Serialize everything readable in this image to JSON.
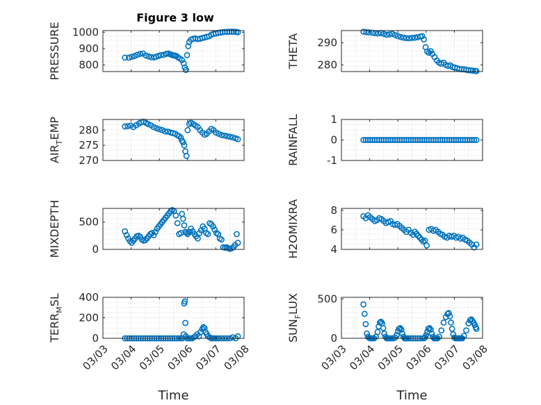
{
  "figure_title": "Figure 3 low",
  "x_axis_label": "Time",
  "x_tick_labels": [
    "03/03",
    "03/04",
    "03/05",
    "03/06",
    "03/07",
    "03/08"
  ],
  "marker_color": "#0072BD",
  "axis_color": "#262626",
  "grid_color": "#cccccc",
  "chart_data": [
    {
      "type": "scatter",
      "label_main": "PRESSURE",
      "label_sub": "",
      "label_tail": "",
      "ylim": [
        760,
        1010
      ],
      "yticks": [
        800,
        900,
        1000
      ],
      "ytick_labels": [
        "800",
        "900",
        "1000"
      ],
      "grid": true,
      "x": [
        3.78,
        3.92,
        4.02,
        4.12,
        4.22,
        4.32,
        4.42,
        4.52,
        4.62,
        4.72,
        4.82,
        4.88,
        4.96,
        5.05,
        5.15,
        5.25,
        5.32,
        5.38,
        5.44,
        5.5,
        5.55,
        5.6,
        5.65,
        5.72,
        5.8,
        5.86,
        5.9,
        5.94,
        5.98,
        6.02,
        6.06,
        6.12,
        6.2,
        6.28,
        6.36,
        6.44,
        6.52,
        6.6,
        6.68,
        6.76,
        6.84,
        6.92,
        7.0,
        7.08,
        7.16,
        7.24,
        7.32,
        7.4,
        7.48,
        7.56,
        7.64,
        7.72,
        7.78
      ],
      "y": [
        845,
        845,
        850,
        855,
        862,
        868,
        870,
        858,
        852,
        848,
        846,
        850,
        855,
        860,
        862,
        868,
        870,
        866,
        862,
        858,
        858,
        855,
        848,
        840,
        830,
        810,
        785,
        770,
        860,
        915,
        940,
        955,
        960,
        962,
        958,
        960,
        965,
        968,
        972,
        975,
        985,
        990,
        992,
        996,
        998,
        1000,
        1002,
        1002,
        1003,
        1003,
        1003,
        1002,
        1000
      ]
    },
    {
      "type": "scatter",
      "label_main": "THETA",
      "label_sub": "",
      "label_tail": "",
      "ylim": [
        277,
        295.5
      ],
      "yticks": [
        280,
        290
      ],
      "ytick_labels": [
        "280",
        "290"
      ],
      "grid": true,
      "x": [
        3.78,
        3.88,
        3.98,
        4.1,
        4.2,
        4.3,
        4.4,
        4.5,
        4.6,
        4.7,
        4.8,
        4.9,
        5.0,
        5.1,
        5.2,
        5.3,
        5.4,
        5.5,
        5.6,
        5.7,
        5.8,
        5.86,
        5.92,
        5.98,
        6.04,
        6.1,
        6.16,
        6.22,
        6.3,
        6.38,
        6.46,
        6.54,
        6.62,
        6.7,
        6.78,
        6.86,
        6.94,
        7.02,
        7.1,
        7.18,
        7.26,
        7.34,
        7.42,
        7.5,
        7.58,
        7.66,
        7.74,
        7.78
      ],
      "y": [
        295,
        294.8,
        294.7,
        294.5,
        294.3,
        294.2,
        294.4,
        294.0,
        293.6,
        293.8,
        294.0,
        293.5,
        293.0,
        292.6,
        292.3,
        292.1,
        292.0,
        292.2,
        292.3,
        292.5,
        292.8,
        293.0,
        291.5,
        288.0,
        286.0,
        285.5,
        286.2,
        285.0,
        283.5,
        282.0,
        281.0,
        280.5,
        281.0,
        280.0,
        279.5,
        279.8,
        279.0,
        278.8,
        278.5,
        278.2,
        278.0,
        278.0,
        277.8,
        277.6,
        277.5,
        277.4,
        277.3,
        277.2
      ]
    },
    {
      "type": "scatter",
      "label_main": "AIR",
      "label_sub": "T",
      "label_tail": "EMP",
      "ylim": [
        270,
        283.5
      ],
      "yticks": [
        270,
        275,
        280
      ],
      "ytick_labels": [
        "270",
        "275",
        "280"
      ],
      "grid": true,
      "x": [
        3.78,
        3.88,
        3.98,
        4.08,
        4.18,
        4.28,
        4.36,
        4.44,
        4.52,
        4.6,
        4.7,
        4.8,
        4.9,
        5.0,
        5.1,
        5.2,
        5.3,
        5.4,
        5.48,
        5.56,
        5.64,
        5.7,
        5.76,
        5.8,
        5.84,
        5.88,
        5.92,
        5.96,
        6.0,
        6.06,
        6.12,
        6.2,
        6.28,
        6.36,
        6.44,
        6.52,
        6.6,
        6.68,
        6.76,
        6.84,
        6.92,
        7.0,
        7.1,
        7.2,
        7.3,
        7.4,
        7.5,
        7.6,
        7.7,
        7.78
      ],
      "y": [
        281.2,
        281.3,
        281.5,
        281.0,
        281.6,
        282.2,
        282.6,
        282.8,
        282.4,
        282.0,
        281.6,
        281.0,
        280.6,
        280.3,
        280.0,
        279.6,
        279.5,
        279.2,
        279.0,
        278.8,
        278.3,
        278.0,
        277.5,
        276.5,
        276.0,
        275.0,
        273.0,
        271.5,
        280.0,
        282.0,
        282.4,
        282.0,
        281.5,
        281.0,
        280.0,
        279.2,
        278.5,
        278.8,
        279.6,
        280.4,
        280.0,
        279.2,
        278.8,
        278.4,
        278.2,
        278.0,
        277.8,
        277.6,
        277.3,
        277.0
      ]
    },
    {
      "type": "scatter",
      "label_main": "RAINFALL",
      "label_sub": "",
      "label_tail": "",
      "ylim": [
        -1,
        1
      ],
      "yticks": [
        -1,
        0,
        1
      ],
      "ytick_labels": [
        "-1",
        "0",
        "1"
      ],
      "grid": true,
      "x": [
        3.78,
        3.86,
        3.94,
        4.02,
        4.1,
        4.18,
        4.26,
        4.34,
        4.42,
        4.5,
        4.58,
        4.66,
        4.74,
        4.82,
        4.9,
        4.98,
        5.06,
        5.14,
        5.22,
        5.3,
        5.38,
        5.46,
        5.54,
        5.62,
        5.7,
        5.78,
        5.86,
        5.94,
        6.02,
        6.1,
        6.18,
        6.26,
        6.34,
        6.42,
        6.5,
        6.58,
        6.66,
        6.74,
        6.82,
        6.9,
        6.98,
        7.06,
        7.14,
        7.22,
        7.3,
        7.38,
        7.46,
        7.54,
        7.62,
        7.7,
        7.78
      ],
      "y": [
        0,
        0,
        0,
        0,
        0,
        0,
        0,
        0,
        0,
        0,
        0,
        0,
        0,
        0,
        0,
        0,
        0,
        0,
        0,
        0,
        0,
        0,
        0,
        0,
        0,
        0,
        0,
        0,
        0,
        0,
        0,
        0,
        0,
        0,
        0,
        0,
        0,
        0,
        0,
        0,
        0,
        0,
        0,
        0,
        0,
        0,
        0,
        0,
        0,
        0,
        0
      ]
    },
    {
      "type": "scatter",
      "label_main": "MIXDEPTH",
      "label_sub": "",
      "label_tail": "",
      "ylim": [
        0,
        750
      ],
      "yticks": [
        0,
        500
      ],
      "ytick_labels": [
        "0",
        "500"
      ],
      "grid": true,
      "x": [
        3.78,
        3.84,
        3.9,
        3.96,
        4.02,
        4.08,
        4.14,
        4.2,
        4.26,
        4.32,
        4.38,
        4.44,
        4.5,
        4.56,
        4.62,
        4.68,
        4.74,
        4.8,
        4.86,
        4.92,
        4.98,
        5.04,
        5.1,
        5.16,
        5.22,
        5.28,
        5.34,
        5.4,
        5.46,
        5.52,
        5.58,
        5.64,
        5.7,
        5.76,
        5.8,
        5.84,
        5.88,
        5.92,
        5.96,
        6.0,
        6.06,
        6.12,
        6.18,
        6.24,
        6.3,
        6.36,
        6.42,
        6.48,
        6.54,
        6.6,
        6.66,
        6.72,
        6.78,
        6.84,
        6.9,
        6.96,
        7.02,
        7.08,
        7.14,
        7.2,
        7.26,
        7.32,
        7.38,
        7.44,
        7.5,
        7.56,
        7.62,
        7.68,
        7.74,
        7.78
      ],
      "y": [
        330,
        260,
        200,
        150,
        120,
        160,
        200,
        240,
        250,
        230,
        180,
        160,
        170,
        200,
        240,
        280,
        300,
        260,
        320,
        380,
        420,
        460,
        500,
        540,
        580,
        620,
        660,
        700,
        720,
        700,
        620,
        480,
        280,
        300,
        650,
        560,
        440,
        320,
        300,
        280,
        320,
        380,
        330,
        280,
        240,
        200,
        300,
        350,
        420,
        380,
        300,
        280,
        480,
        460,
        420,
        360,
        300,
        280,
        200,
        180,
        40,
        30,
        40,
        20,
        10,
        20,
        40,
        80,
        280,
        120
      ]
    },
    {
      "type": "scatter",
      "label_main": "H2OMIXRA",
      "label_sub": "",
      "label_tail": "",
      "ylim": [
        4,
        8.2
      ],
      "yticks": [
        4,
        6,
        8
      ],
      "ytick_labels": [
        "4",
        "6",
        "8"
      ],
      "grid": true,
      "x": [
        3.78,
        3.86,
        3.94,
        4.02,
        4.1,
        4.18,
        4.26,
        4.34,
        4.42,
        4.5,
        4.58,
        4.66,
        4.74,
        4.82,
        4.9,
        4.98,
        5.06,
        5.14,
        5.22,
        5.3,
        5.38,
        5.46,
        5.54,
        5.6,
        5.66,
        5.72,
        5.78,
        5.84,
        5.9,
        5.96,
        6.02,
        6.1,
        6.18,
        6.26,
        6.34,
        6.42,
        6.5,
        6.58,
        6.66,
        6.74,
        6.82,
        6.9,
        6.98,
        7.06,
        7.14,
        7.22,
        7.3,
        7.38,
        7.46,
        7.54,
        7.62,
        7.7,
        7.78
      ],
      "y": [
        7.4,
        7.2,
        7.5,
        7.3,
        7.1,
        6.9,
        7.0,
        7.2,
        7.1,
        6.9,
        6.7,
        6.8,
        6.9,
        6.6,
        6.5,
        6.6,
        6.4,
        6.2,
        6.0,
        5.8,
        6.0,
        5.7,
        5.5,
        5.8,
        5.6,
        5.4,
        5.2,
        5.0,
        4.8,
        4.9,
        4.4,
        6.0,
        6.1,
        5.9,
        6.0,
        5.8,
        5.6,
        5.5,
        5.3,
        5.2,
        5.4,
        5.3,
        5.4,
        5.2,
        5.3,
        5.1,
        5.2,
        5.0,
        4.9,
        4.7,
        4.5,
        4.2,
        4.5
      ]
    },
    {
      "type": "scatter",
      "label_main": "TERR",
      "label_sub": "M",
      "label_tail": "SL",
      "ylim": [
        0,
        400
      ],
      "yticks": [
        0,
        200,
        400
      ],
      "ytick_labels": [
        "0",
        "200",
        "400"
      ],
      "grid": true,
      "x": [
        3.78,
        3.86,
        3.94,
        4.02,
        4.1,
        4.18,
        4.26,
        4.34,
        4.42,
        4.5,
        4.58,
        4.66,
        4.74,
        4.82,
        4.9,
        4.98,
        5.06,
        5.14,
        5.22,
        5.3,
        5.38,
        5.46,
        5.54,
        5.62,
        5.7,
        5.76,
        5.82,
        5.86,
        5.88,
        5.9,
        5.92,
        5.94,
        5.98,
        6.04,
        6.1,
        6.16,
        6.22,
        6.28,
        6.34,
        6.4,
        6.46,
        6.52,
        6.56,
        6.6,
        6.64,
        6.68,
        6.72,
        6.78,
        6.84,
        6.9,
        6.96,
        7.02,
        7.1,
        7.2,
        7.3,
        7.4,
        7.5,
        7.6,
        7.7,
        7.78
      ],
      "y": [
        0,
        0,
        0,
        0,
        0,
        0,
        0,
        0,
        0,
        0,
        0,
        0,
        0,
        0,
        0,
        0,
        0,
        0,
        0,
        0,
        0,
        0,
        0,
        0,
        0,
        0,
        0,
        40,
        340,
        360,
        150,
        20,
        0,
        0,
        0,
        0,
        10,
        20,
        40,
        20,
        60,
        90,
        110,
        100,
        60,
        40,
        20,
        10,
        0,
        0,
        0,
        0,
        0,
        0,
        0,
        0,
        0,
        10,
        0,
        20
      ]
    },
    {
      "type": "scatter",
      "label_main": "SUN",
      "label_sub": "F",
      "label_tail": "LUX",
      "ylim": [
        0,
        520
      ],
      "yticks": [
        0,
        500
      ],
      "ytick_labels": [
        "0",
        "500"
      ],
      "grid": true,
      "x": [
        3.78,
        3.82,
        3.86,
        3.9,
        3.94,
        3.98,
        4.02,
        4.06,
        4.1,
        4.16,
        4.22,
        4.28,
        4.32,
        4.36,
        4.4,
        4.44,
        4.48,
        4.52,
        4.56,
        4.6,
        4.64,
        4.68,
        4.72,
        4.78,
        4.84,
        4.9,
        4.96,
        5.0,
        5.04,
        5.08,
        5.12,
        5.16,
        5.2,
        5.24,
        5.28,
        5.32,
        5.38,
        5.46,
        5.54,
        5.62,
        5.7,
        5.78,
        5.86,
        5.92,
        5.96,
        6.0,
        6.04,
        6.08,
        6.12,
        6.16,
        6.2,
        6.24,
        6.28,
        6.32,
        6.36,
        6.4,
        6.46,
        6.54,
        6.62,
        6.7,
        6.76,
        6.8,
        6.84,
        6.88,
        6.92,
        6.96,
        7.0,
        7.04,
        7.08,
        7.12,
        7.16,
        7.2,
        7.24,
        7.28,
        7.34,
        7.42,
        7.5,
        7.56,
        7.6,
        7.64,
        7.68,
        7.72,
        7.76,
        7.78
      ],
      "y": [
        430,
        310,
        180,
        60,
        20,
        5,
        0,
        0,
        0,
        0,
        20,
        80,
        150,
        200,
        210,
        190,
        130,
        60,
        20,
        0,
        0,
        0,
        0,
        0,
        0,
        10,
        40,
        90,
        120,
        130,
        110,
        60,
        20,
        0,
        0,
        0,
        0,
        0,
        0,
        0,
        0,
        0,
        0,
        0,
        10,
        40,
        80,
        120,
        130,
        110,
        60,
        20,
        0,
        0,
        0,
        0,
        20,
        100,
        200,
        270,
        310,
        320,
        280,
        200,
        120,
        50,
        10,
        0,
        0,
        0,
        0,
        0,
        0,
        0,
        30,
        100,
        190,
        230,
        240,
        220,
        200,
        170,
        140,
        120
      ]
    }
  ]
}
